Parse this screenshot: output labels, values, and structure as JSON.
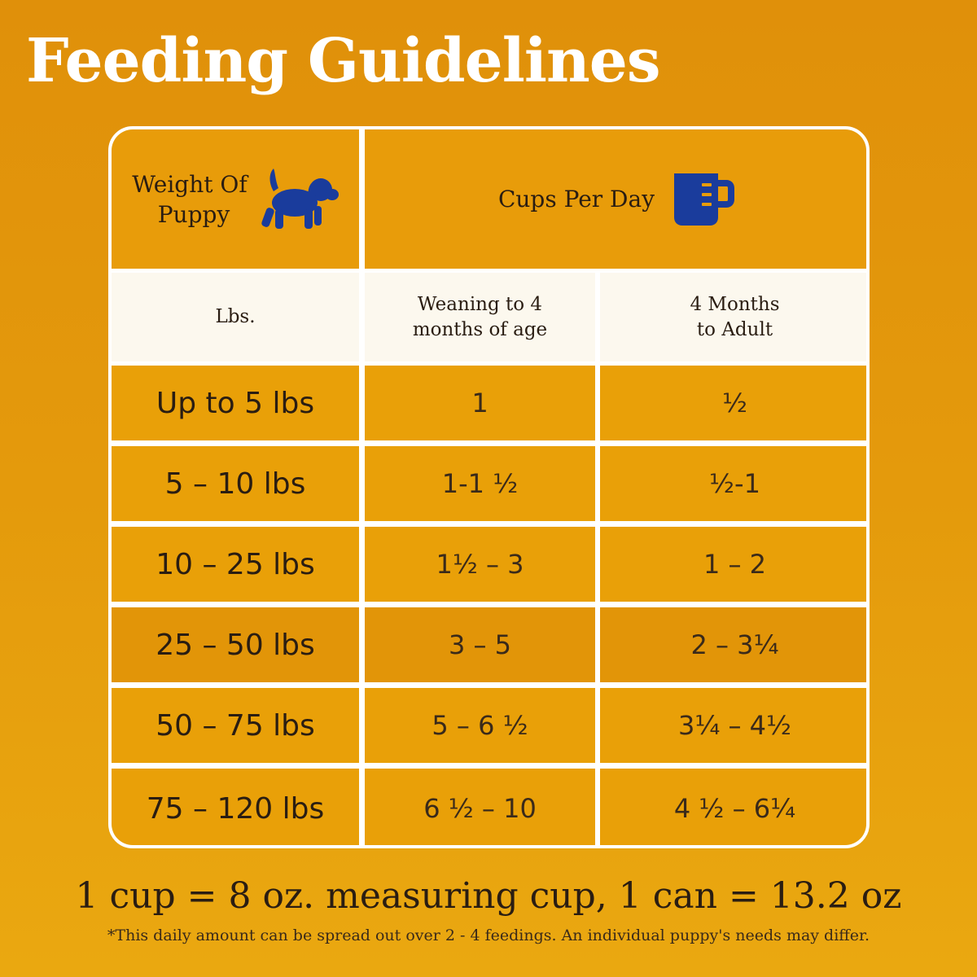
{
  "title": "Feeding Guidelines",
  "header": {
    "weight_label_1": "Weight Of",
    "weight_label_2": "Puppy",
    "cups_label": "Cups Per Day",
    "puppy_icon": "puppy-icon",
    "cup_icon": "measuring-cup-icon"
  },
  "subheader": {
    "lbs": "Lbs.",
    "col1_line1": "Weaning to 4",
    "col1_line2": "months of age",
    "col2_line1": "4 Months",
    "col2_line2": "to Adult"
  },
  "rows": [
    {
      "weight": "Up to 5 lbs",
      "weaning": "1",
      "adult": "½"
    },
    {
      "weight": "5 – 10 lbs",
      "weaning": "1-1 ½",
      "adult": "½-1"
    },
    {
      "weight": "10 – 25 lbs",
      "weaning": "1½ – 3",
      "adult": "1 – 2"
    },
    {
      "weight": "25 – 50 lbs",
      "weaning": "3 – 5",
      "adult": "2 – 3¼"
    },
    {
      "weight": "50 – 75 lbs",
      "weaning": "5 – 6 ½",
      "adult": "3¼ – 4½"
    },
    {
      "weight": "75 – 120 lbs",
      "weaning": "6 ½ – 10",
      "adult": "4 ½ – 6¼"
    }
  ],
  "footer": {
    "main": "1 cup = 8 oz. measuring cup, 1 can = 13.2 oz",
    "note": "*This daily amount can be spread out over 2 - 4 feedings. An individual puppy's needs may differ."
  },
  "colors": {
    "icon_blue": "#1a3c9c",
    "background": "#e49a0c"
  }
}
